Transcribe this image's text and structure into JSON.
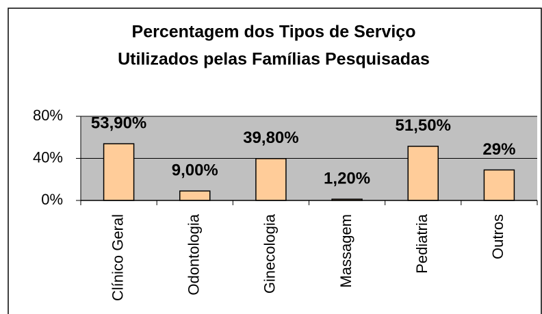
{
  "chart_data": {
    "type": "bar",
    "title": [
      "Percentagem dos Tipos de Serviço",
      "Utilizados pelas Famílias Pesquisadas"
    ],
    "categories": [
      "Clínico Geral",
      "Odontologia",
      "Ginecologia",
      "Massagem",
      "Pediatria",
      "Outros"
    ],
    "values": [
      53.9,
      9,
      39.8,
      1.2,
      51.5,
      29
    ],
    "value_labels": [
      "53,90%",
      "9,00%",
      "39,80%",
      "1,20%",
      "51,50%",
      "29%"
    ],
    "color": "#ffcc99",
    "ylim": [
      0,
      80
    ],
    "yticks": [
      {
        "value": 0,
        "label": "0%"
      },
      {
        "value": 40,
        "label": "40%"
      },
      {
        "value": 80,
        "label": "80%"
      }
    ],
    "grid": true
  }
}
